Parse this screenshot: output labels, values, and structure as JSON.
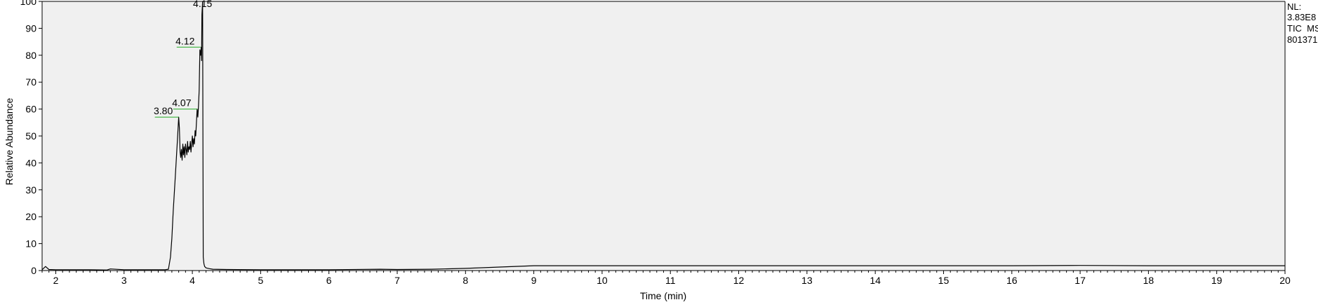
{
  "chart_data": {
    "type": "line",
    "title": "",
    "xlabel": "Time (min)",
    "ylabel": "Relative Abundance",
    "xlim": [
      1.8,
      20
    ],
    "ylim": [
      0,
      100
    ],
    "x_ticks": [
      2,
      3,
      4,
      5,
      6,
      7,
      8,
      9,
      10,
      11,
      12,
      13,
      14,
      15,
      16,
      17,
      18,
      19,
      20
    ],
    "y_ticks": [
      0,
      10,
      20,
      30,
      40,
      50,
      60,
      70,
      80,
      90,
      100
    ],
    "grid": false,
    "legend": "none",
    "colors": {
      "plot_background": "#f0f0f0",
      "trace": "#000000",
      "peak_marker": "#22aa22"
    },
    "info": {
      "lines": [
        "NL:",
        "3.83E8",
        "TIC  MS",
        "801371"
      ]
    },
    "peak_labels": [
      {
        "label": "3.80",
        "x": 3.8,
        "y": 57
      },
      {
        "label": "4.07",
        "x": 4.07,
        "y": 60
      },
      {
        "label": "4.12",
        "x": 4.12,
        "y": 83
      },
      {
        "label": "4.15",
        "x": 4.15,
        "y": 100
      }
    ],
    "series": [
      {
        "x": [
          1.8,
          1.85,
          1.9,
          2.0,
          2.2,
          2.5,
          2.75,
          2.8,
          3.0,
          3.3,
          3.5,
          3.6,
          3.65,
          3.68,
          3.7,
          3.72,
          3.75,
          3.78,
          3.8,
          3.81,
          3.82,
          3.83,
          3.84,
          3.85,
          3.86,
          3.87,
          3.88,
          3.89,
          3.9,
          3.91,
          3.92,
          3.93,
          3.94,
          3.95,
          3.96,
          3.97,
          3.98,
          3.99,
          4.0,
          4.01,
          4.02,
          4.03,
          4.04,
          4.05,
          4.06,
          4.07,
          4.08,
          4.09,
          4.1,
          4.11,
          4.12,
          4.13,
          4.135,
          4.14,
          4.15,
          4.155,
          4.16,
          4.17,
          4.18,
          4.2,
          4.25,
          4.3,
          4.5,
          5.0,
          6.0,
          6.75,
          7.0,
          7.5,
          8.0,
          8.5,
          9.0,
          10.0,
          12.0,
          14.0,
          16.0,
          17.0,
          18.0,
          19.0,
          20.0
        ],
        "y": [
          0.3,
          1.5,
          0.4,
          0.3,
          0.3,
          0.3,
          0.2,
          0.6,
          0.3,
          0.3,
          0.3,
          0.3,
          0.5,
          5,
          12,
          22,
          35,
          48,
          57,
          53,
          44,
          42,
          45,
          41,
          47,
          43,
          46,
          42,
          47,
          45,
          43,
          48,
          44,
          46,
          45,
          48,
          44,
          47,
          50,
          46,
          49,
          47,
          52,
          50,
          55,
          60,
          57,
          61,
          67,
          82,
          80,
          83,
          78,
          95,
          100,
          45,
          5,
          2.5,
          1.5,
          1.0,
          0.7,
          0.5,
          0.4,
          0.3,
          0.3,
          0.5,
          0.4,
          0.5,
          0.8,
          1.3,
          1.8,
          1.8,
          1.8,
          1.8,
          1.8,
          1.9,
          1.8,
          1.8,
          1.8
        ]
      }
    ]
  }
}
